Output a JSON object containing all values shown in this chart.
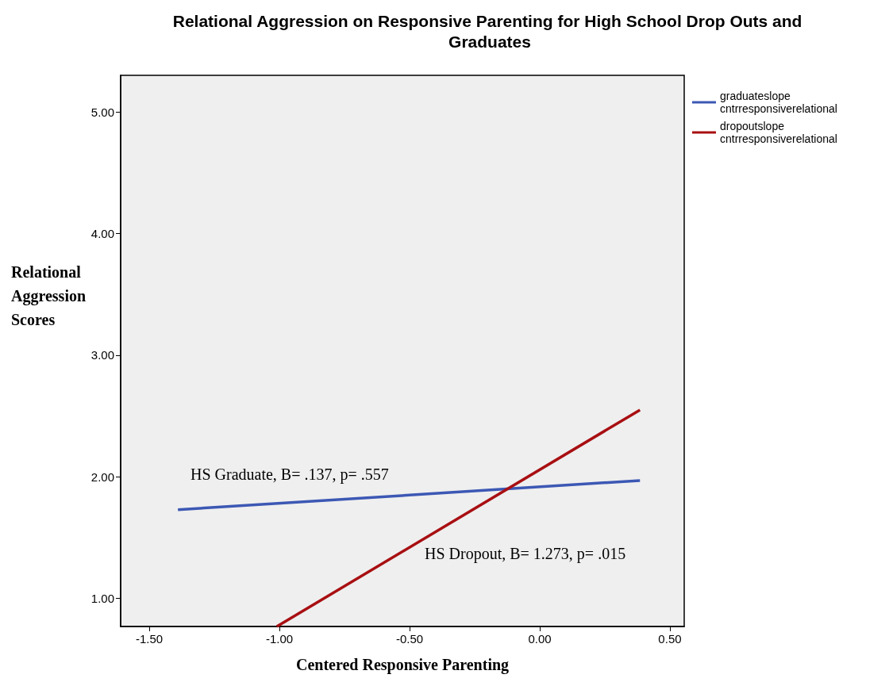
{
  "chart_data": {
    "type": "line",
    "title": "Relational Aggression on Responsive Parenting for High School Drop Outs and Graduates",
    "xlabel": "Centered Responsive Parenting",
    "ylabel": "Relational Aggression Scores",
    "series": [
      {
        "name": "graduateslope cntrresponsiverelational",
        "color": "#3c58b4",
        "x": [
          -1.39,
          0.385
        ],
        "values": [
          1.73,
          1.97
        ]
      },
      {
        "name": "dropoutslope cntrresponsiverelational",
        "color": "#a80f12",
        "x": [
          -1.01,
          0.385
        ],
        "values": [
          0.77,
          2.55
        ]
      }
    ],
    "annotations": [
      "HS Graduate, B= .137, p= .557",
      "HS Dropout, B= 1.273, p= .015"
    ],
    "xlim": [
      -1.61,
      0.555
    ],
    "xticks": [
      {
        "value": -1.5,
        "label": "-1.50"
      },
      {
        "value": -1,
        "label": "-1.00"
      },
      {
        "value": -0.5,
        "label": "-0.50"
      },
      {
        "value": 0,
        "label": "0.00"
      },
      {
        "value": 0.5,
        "label": "0.50"
      }
    ],
    "ylim": [
      0.77,
      5.3
    ],
    "yticks": [
      {
        "value": 1,
        "label": "1.00"
      },
      {
        "value": 2,
        "label": "2.00"
      },
      {
        "value": 3,
        "label": "3.00"
      },
      {
        "value": 4,
        "label": "4.00"
      },
      {
        "value": 5,
        "label": "5.00"
      }
    ],
    "grid": false,
    "legend": "top right",
    "marker": "none",
    "line_style": "solid"
  }
}
